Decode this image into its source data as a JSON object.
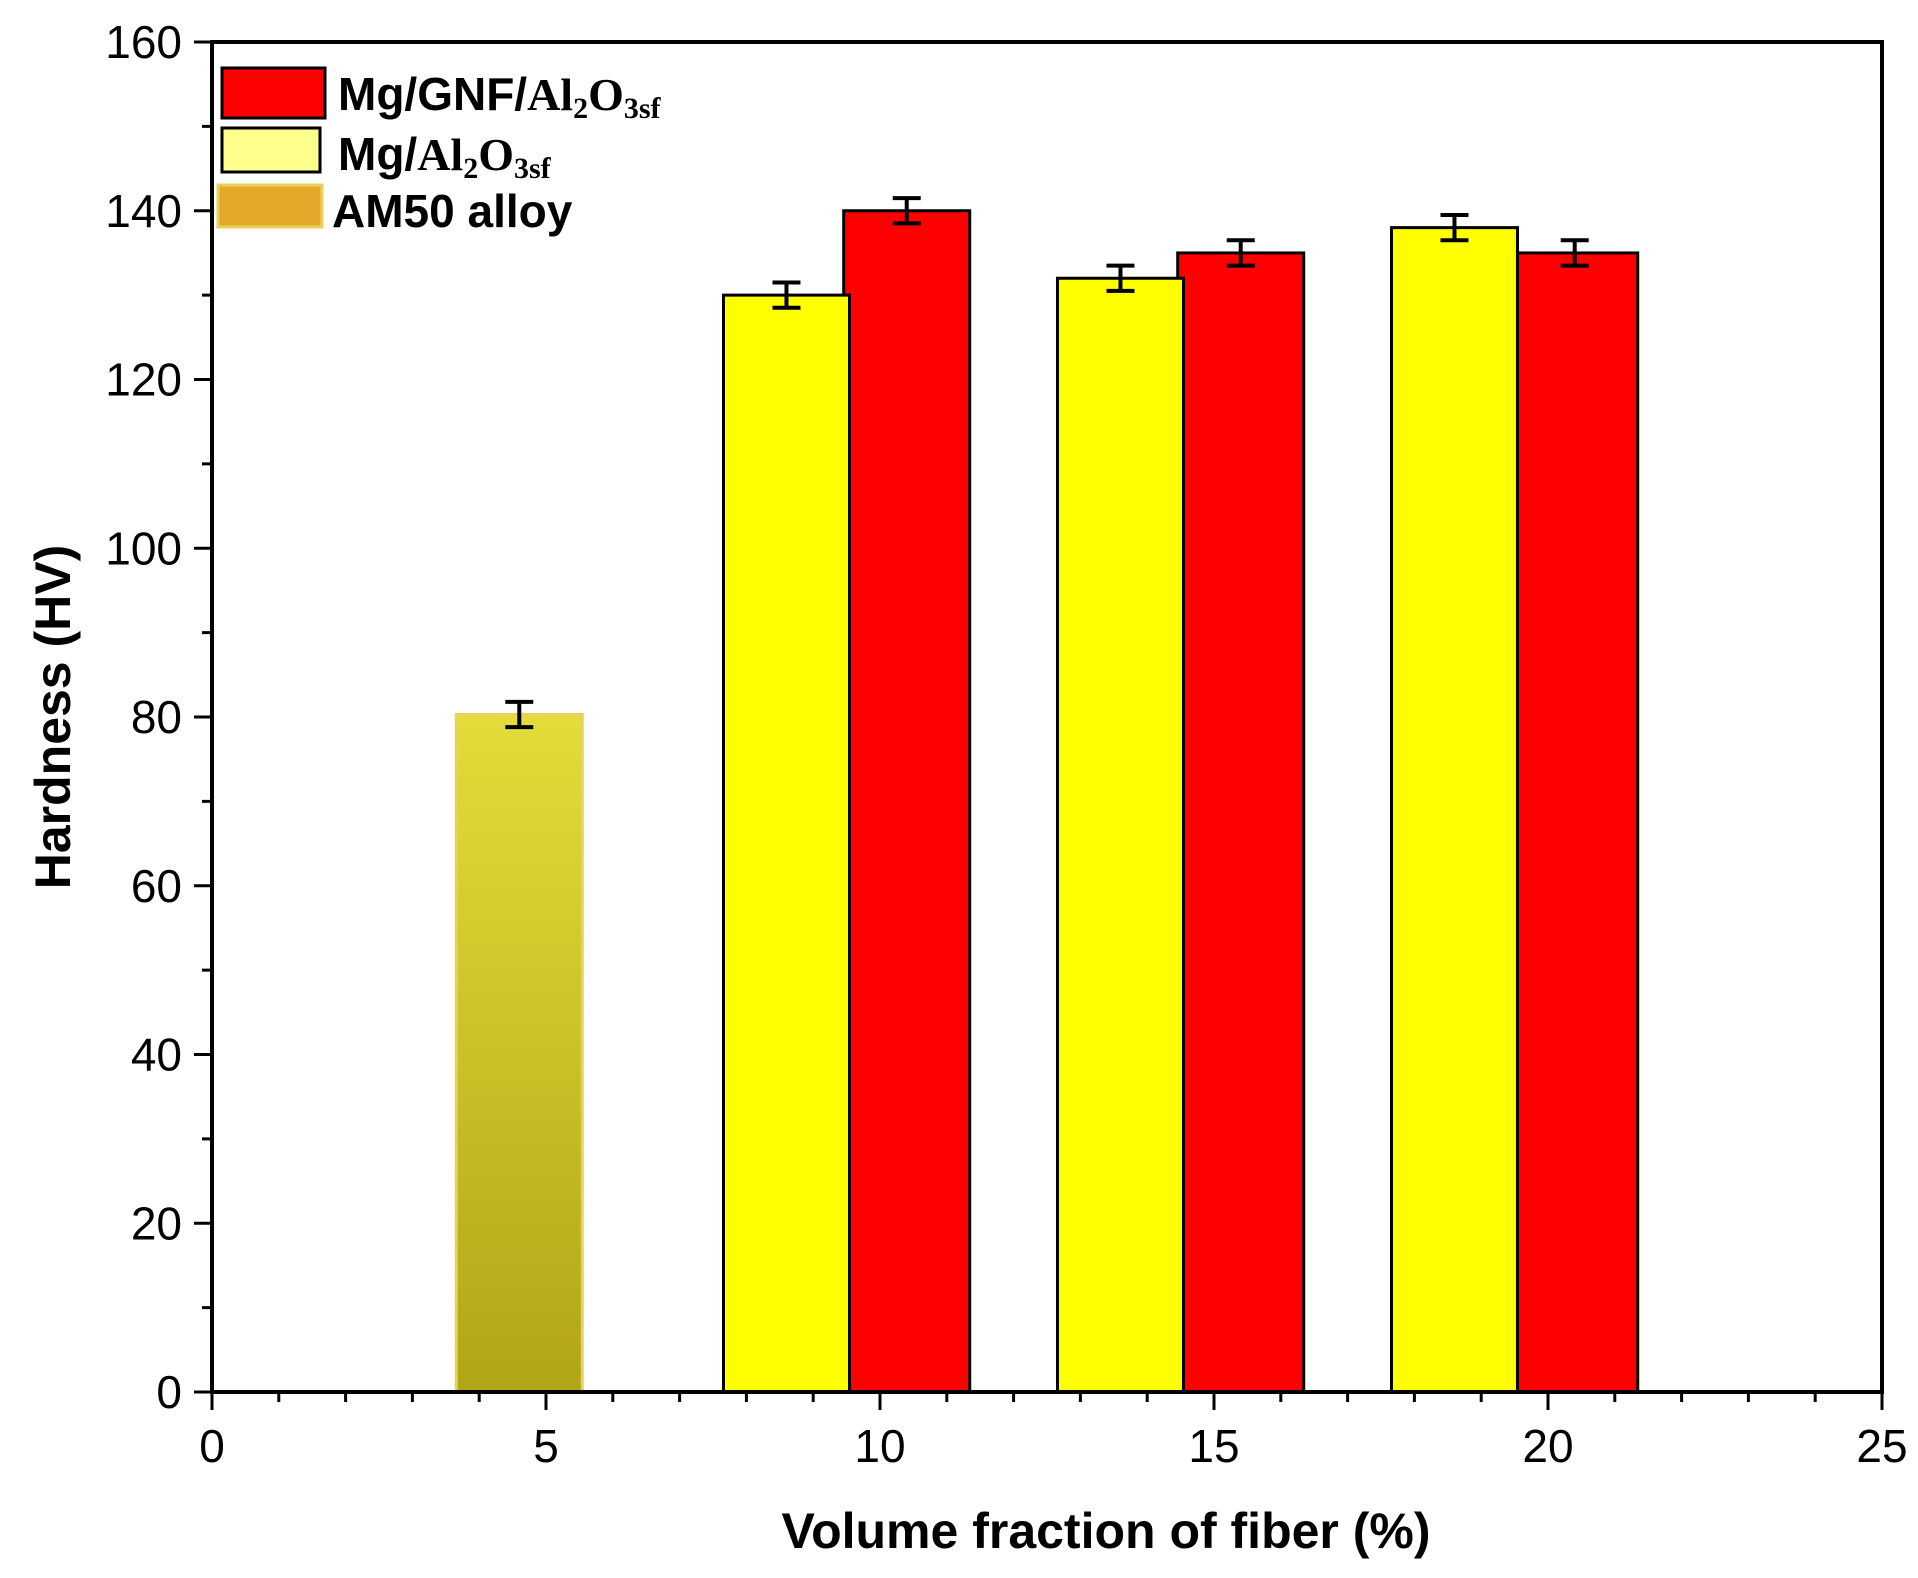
{
  "chart_data": {
    "type": "bar",
    "title": "",
    "xlabel": "Volume fraction of fiber (%)",
    "ylabel": "Hardness (HV)",
    "xlim": [
      0,
      25
    ],
    "ylim": [
      0,
      160
    ],
    "x_ticks": [
      0,
      5,
      10,
      15,
      20,
      25
    ],
    "y_ticks": [
      0,
      20,
      40,
      60,
      80,
      100,
      120,
      140,
      160
    ],
    "grid": false,
    "legend_position": "top-left",
    "series": [
      {
        "name": "Mg/GNF/Al2O3sf",
        "legend_main": "Mg/GNF/",
        "legend_chem": [
          "Al",
          "2",
          "O",
          "3sf"
        ],
        "color": "#ff0000",
        "x": [
          10.4,
          15.4,
          20.4
        ],
        "values": [
          140,
          135,
          135
        ],
        "errors": [
          1.5,
          1.5,
          1.5
        ]
      },
      {
        "name": "Mg/Al2O3sf",
        "legend_main": "Mg/",
        "legend_chem": [
          "Al",
          "2",
          "O",
          "3sf"
        ],
        "color": "#ffff00",
        "x": [
          8.6,
          13.6,
          18.6
        ],
        "values": [
          130,
          132,
          138
        ],
        "errors": [
          1.5,
          1.5,
          1.5
        ]
      },
      {
        "name": "AM50 alloy",
        "legend_main": "AM50 alloy",
        "color": "#e5a92a",
        "x": [
          4.6
        ],
        "values": [
          80.3
        ],
        "errors": [
          1.5
        ]
      }
    ]
  }
}
